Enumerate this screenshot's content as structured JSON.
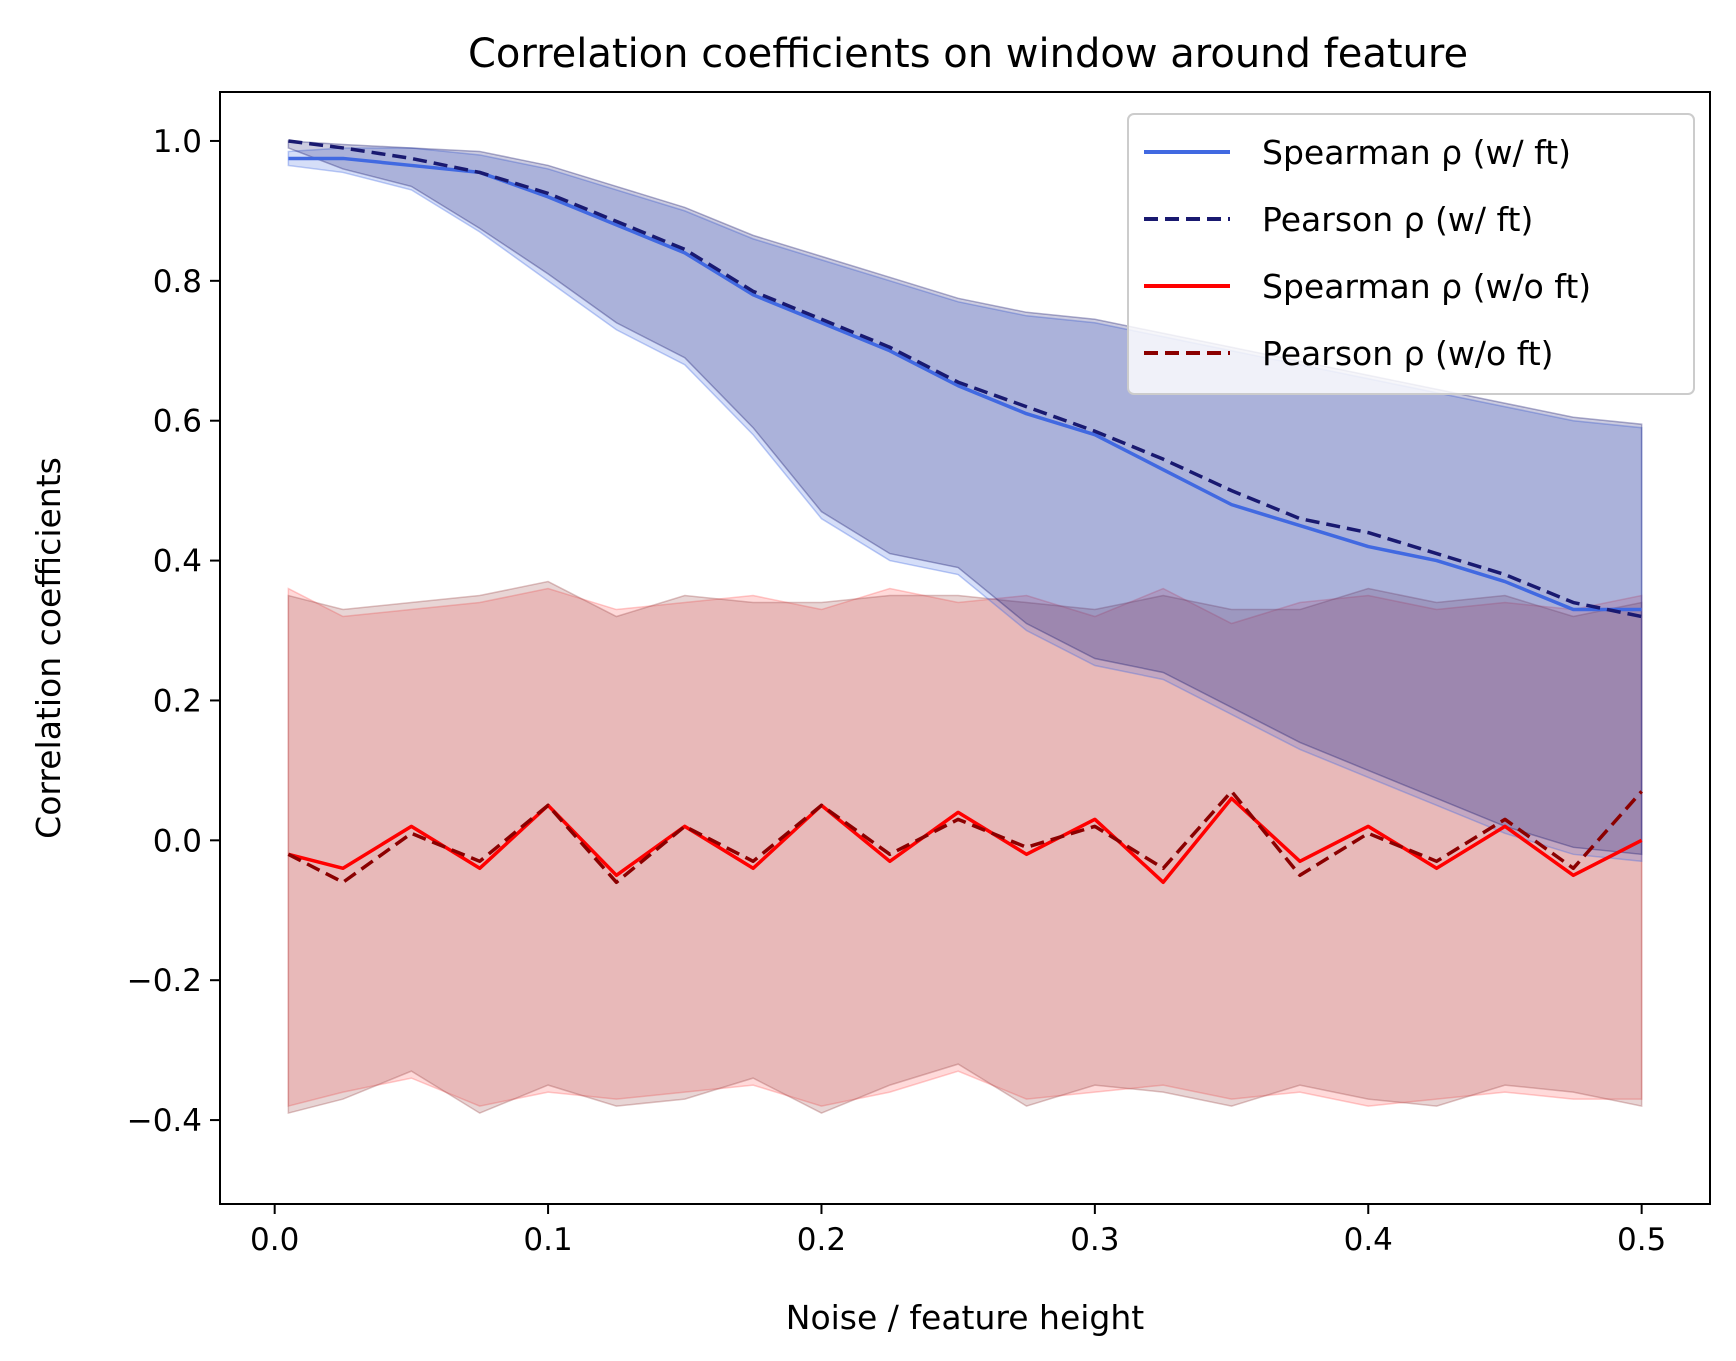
{
  "chart_data": {
    "type": "line",
    "title": "Correlation coefficients on window around feature",
    "xlabel": "Noise / feature height",
    "ylabel": "Correlation coefficients",
    "xlim": [
      -0.02,
      0.525
    ],
    "ylim": [
      -0.52,
      1.07
    ],
    "xticks": [
      0.0,
      0.1,
      0.2,
      0.3,
      0.4,
      0.5
    ],
    "xtick_labels": [
      "0.0",
      "0.1",
      "0.2",
      "0.3",
      "0.4",
      "0.5"
    ],
    "yticks": [
      -0.4,
      -0.2,
      0.0,
      0.2,
      0.4,
      0.6,
      0.8,
      1.0
    ],
    "ytick_labels": [
      "−0.4",
      "−0.2",
      "0.0",
      "0.2",
      "0.4",
      "0.6",
      "0.8",
      "1.0"
    ],
    "grid": false,
    "legend_position": "top-right",
    "x": [
      0.005,
      0.025,
      0.05,
      0.075,
      0.1,
      0.125,
      0.15,
      0.175,
      0.2,
      0.225,
      0.25,
      0.275,
      0.3,
      0.325,
      0.35,
      0.375,
      0.4,
      0.425,
      0.45,
      0.475,
      0.5
    ],
    "series": [
      {
        "name": "Spearman ρ (w/ ft)",
        "style": "solid",
        "color": "#4169e1",
        "band_color": "#4169e1",
        "values": [
          0.975,
          0.975,
          0.965,
          0.955,
          0.92,
          0.88,
          0.84,
          0.78,
          0.74,
          0.7,
          0.65,
          0.61,
          0.58,
          0.53,
          0.48,
          0.45,
          0.42,
          0.4,
          0.37,
          0.33,
          0.33
        ],
        "lower": [
          0.965,
          0.955,
          0.93,
          0.87,
          0.8,
          0.73,
          0.68,
          0.58,
          0.46,
          0.4,
          0.38,
          0.3,
          0.25,
          0.23,
          0.18,
          0.13,
          0.09,
          0.05,
          0.01,
          -0.02,
          -0.03
        ],
        "upper": [
          0.985,
          0.99,
          0.99,
          0.98,
          0.96,
          0.93,
          0.9,
          0.86,
          0.83,
          0.8,
          0.77,
          0.75,
          0.74,
          0.72,
          0.7,
          0.68,
          0.66,
          0.64,
          0.62,
          0.6,
          0.59
        ]
      },
      {
        "name": "Pearson ρ (w/ ft)",
        "style": "dashed",
        "color": "#191970",
        "band_color": "#191970",
        "values": [
          1.0,
          0.99,
          0.975,
          0.955,
          0.925,
          0.885,
          0.845,
          0.785,
          0.745,
          0.705,
          0.655,
          0.62,
          0.585,
          0.545,
          0.5,
          0.46,
          0.44,
          0.41,
          0.38,
          0.34,
          0.32
        ],
        "lower": [
          0.99,
          0.96,
          0.935,
          0.875,
          0.81,
          0.74,
          0.69,
          0.59,
          0.47,
          0.41,
          0.39,
          0.31,
          0.26,
          0.24,
          0.19,
          0.14,
          0.1,
          0.06,
          0.02,
          -0.01,
          -0.02
        ],
        "upper": [
          1.0,
          0.995,
          0.99,
          0.985,
          0.965,
          0.935,
          0.905,
          0.865,
          0.835,
          0.805,
          0.775,
          0.755,
          0.745,
          0.725,
          0.705,
          0.685,
          0.665,
          0.645,
          0.625,
          0.605,
          0.595
        ]
      },
      {
        "name": "Spearman ρ (w/o ft)",
        "style": "solid",
        "color": "#ff0000",
        "band_color": "#ff6666",
        "values": [
          -0.02,
          -0.04,
          0.02,
          -0.04,
          0.05,
          -0.05,
          0.02,
          -0.04,
          0.05,
          -0.03,
          0.04,
          -0.02,
          0.03,
          -0.06,
          0.06,
          -0.03,
          0.02,
          -0.04,
          0.02,
          -0.05,
          0.0
        ],
        "lower": [
          -0.38,
          -0.36,
          -0.34,
          -0.38,
          -0.36,
          -0.37,
          -0.36,
          -0.35,
          -0.38,
          -0.36,
          -0.33,
          -0.37,
          -0.36,
          -0.35,
          -0.37,
          -0.36,
          -0.38,
          -0.37,
          -0.36,
          -0.37,
          -0.37
        ],
        "upper": [
          0.36,
          0.32,
          0.33,
          0.34,
          0.36,
          0.33,
          0.34,
          0.35,
          0.33,
          0.36,
          0.34,
          0.35,
          0.32,
          0.36,
          0.31,
          0.34,
          0.35,
          0.33,
          0.34,
          0.33,
          0.35
        ]
      },
      {
        "name": "Pearson ρ (w/o ft)",
        "style": "dashed",
        "color": "#8b0000",
        "band_color": "#a05050",
        "values": [
          -0.02,
          -0.06,
          0.01,
          -0.03,
          0.05,
          -0.06,
          0.02,
          -0.03,
          0.05,
          -0.02,
          0.03,
          -0.01,
          0.02,
          -0.04,
          0.07,
          -0.05,
          0.01,
          -0.03,
          0.03,
          -0.04,
          0.07
        ],
        "lower": [
          -0.39,
          -0.37,
          -0.33,
          -0.39,
          -0.35,
          -0.38,
          -0.37,
          -0.34,
          -0.39,
          -0.35,
          -0.32,
          -0.38,
          -0.35,
          -0.36,
          -0.38,
          -0.35,
          -0.37,
          -0.38,
          -0.35,
          -0.36,
          -0.38
        ],
        "upper": [
          0.35,
          0.33,
          0.34,
          0.35,
          0.37,
          0.32,
          0.35,
          0.34,
          0.34,
          0.35,
          0.35,
          0.34,
          0.33,
          0.35,
          0.33,
          0.33,
          0.36,
          0.34,
          0.35,
          0.32,
          0.34
        ]
      }
    ]
  }
}
